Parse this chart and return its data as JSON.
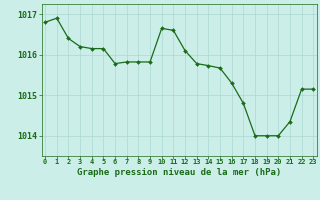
{
  "hours": [
    0,
    1,
    2,
    3,
    4,
    5,
    6,
    7,
    8,
    9,
    10,
    11,
    12,
    13,
    14,
    15,
    16,
    17,
    18,
    19,
    20,
    21,
    22,
    23
  ],
  "pressure": [
    1016.8,
    1016.9,
    1016.4,
    1016.2,
    1016.15,
    1016.15,
    1015.78,
    1015.82,
    1015.82,
    1015.82,
    1016.65,
    1016.6,
    1016.1,
    1015.78,
    1015.73,
    1015.67,
    1015.3,
    1014.8,
    1014.0,
    1014.0,
    1014.0,
    1014.35,
    1015.15,
    1015.15
  ],
  "line_color": "#1a6b1a",
  "marker_color": "#1a6b1a",
  "bg_color": "#cceee8",
  "grid_color": "#aad8d0",
  "xlabel": "Graphe pression niveau de la mer (hPa)",
  "xlabel_color": "#1a6b1a",
  "tick_color": "#1a6b1a",
  "ylim": [
    1013.5,
    1017.25
  ],
  "yticks": [
    1014,
    1015,
    1016,
    1017
  ],
  "figure_bg": "#cceee8"
}
